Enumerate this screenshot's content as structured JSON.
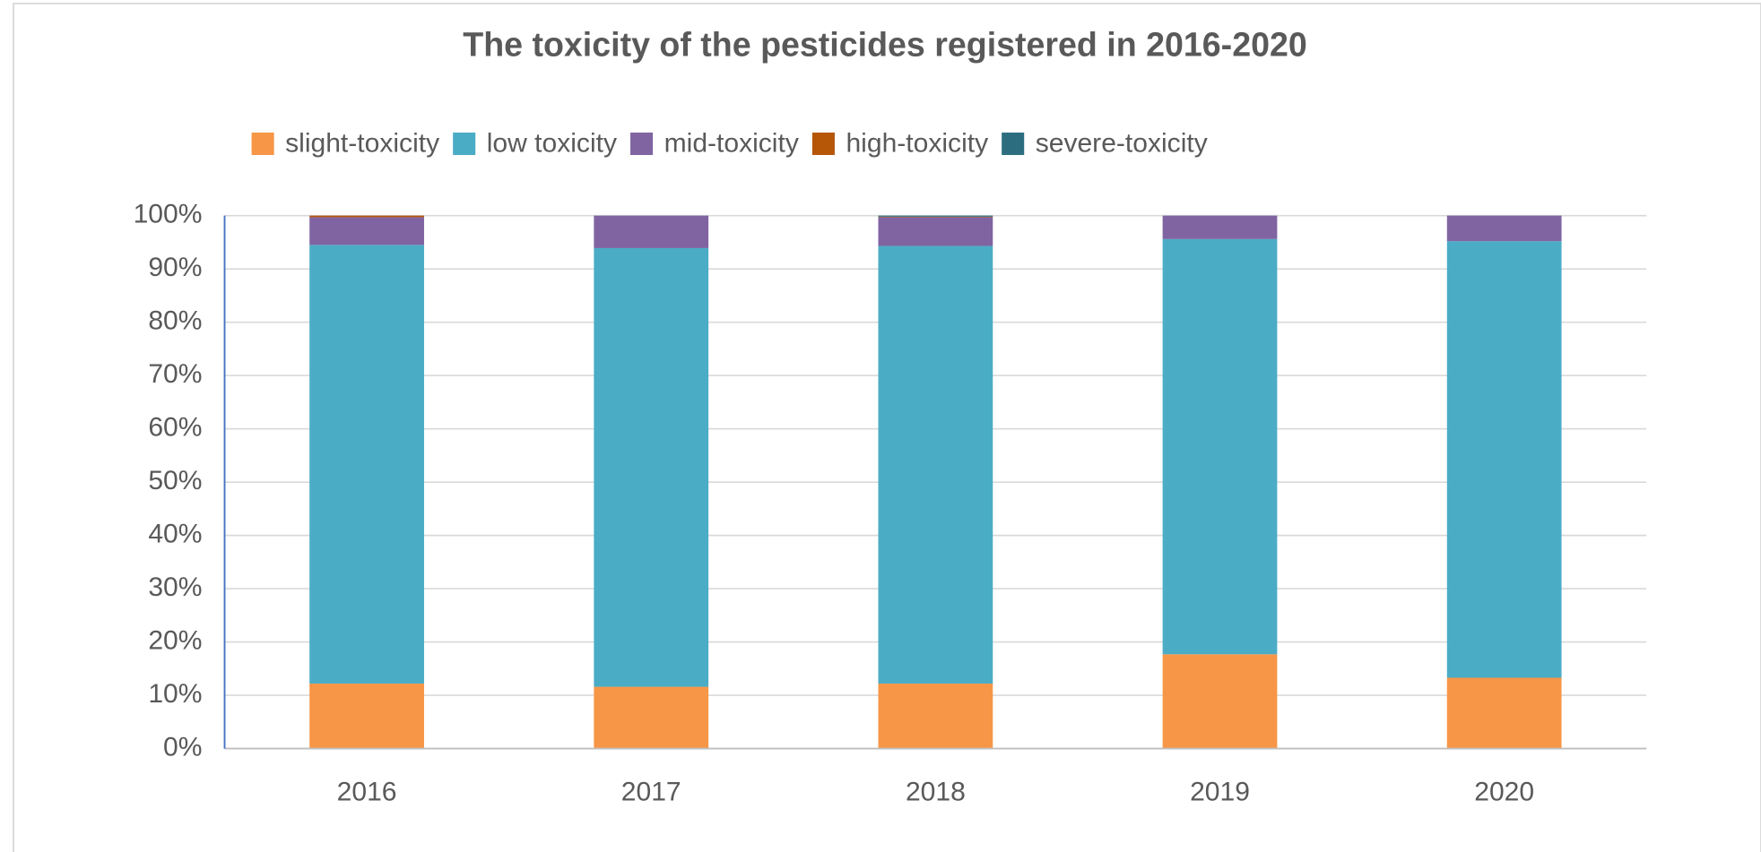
{
  "chart_data": {
    "type": "stacked_bar",
    "title": "The toxicity of the pesticides registered in 2016-2020",
    "categories": [
      "2016",
      "2017",
      "2018",
      "2019",
      "2020"
    ],
    "series": [
      {
        "name": "slight-toxicity",
        "color": "#f79646",
        "values": [
          12.2,
          11.6,
          12.2,
          17.7,
          13.3
        ]
      },
      {
        "name": "low toxicity",
        "color": "#4bacc6",
        "values": [
          82.3,
          82.3,
          82.1,
          77.9,
          81.9
        ]
      },
      {
        "name": "mid-toxicity",
        "color": "#8064a2",
        "values": [
          5.2,
          6.1,
          5.4,
          4.4,
          4.8
        ]
      },
      {
        "name": "high-toxicity",
        "color": "#b65708",
        "values": [
          0.3,
          0,
          0.1,
          0,
          0
        ]
      },
      {
        "name": "severe-toxicity",
        "color": "#2c6e80",
        "values": [
          0,
          0,
          0.2,
          0,
          0
        ]
      }
    ],
    "ylim": [
      0,
      100
    ],
    "yticks": [
      {
        "value": 0,
        "label": "0%"
      },
      {
        "value": 10,
        "label": "10%"
      },
      {
        "value": 20,
        "label": "20%"
      },
      {
        "value": 30,
        "label": "30%"
      },
      {
        "value": 40,
        "label": "40%"
      },
      {
        "value": 50,
        "label": "50%"
      },
      {
        "value": 60,
        "label": "60%"
      },
      {
        "value": 70,
        "label": "70%"
      },
      {
        "value": 80,
        "label": "80%"
      },
      {
        "value": 90,
        "label": "90%"
      },
      {
        "value": 100,
        "label": "100%"
      }
    ],
    "grid": true,
    "legend": "top"
  }
}
